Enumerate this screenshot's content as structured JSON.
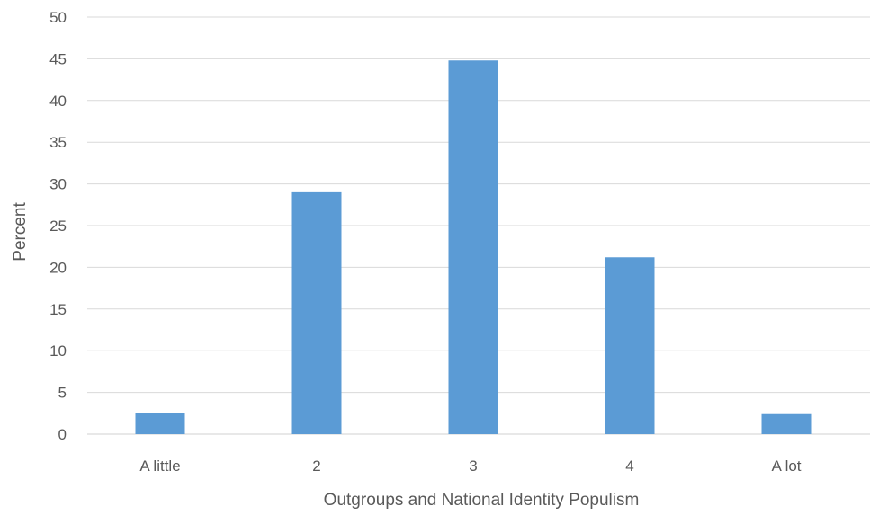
{
  "chart_data": {
    "type": "bar",
    "categories": [
      "A little",
      "2",
      "3",
      "4",
      "A lot"
    ],
    "values": [
      2.5,
      29.0,
      44.8,
      21.2,
      2.4
    ],
    "xlabel": "Outgroups and National Identity Populism",
    "ylabel": "Percent",
    "ylim": [
      0,
      50
    ],
    "yticks": [
      0,
      5,
      10,
      15,
      20,
      25,
      30,
      35,
      40,
      45,
      50
    ],
    "grid": true,
    "legend": "none",
    "bar_color": "#5b9bd5"
  }
}
